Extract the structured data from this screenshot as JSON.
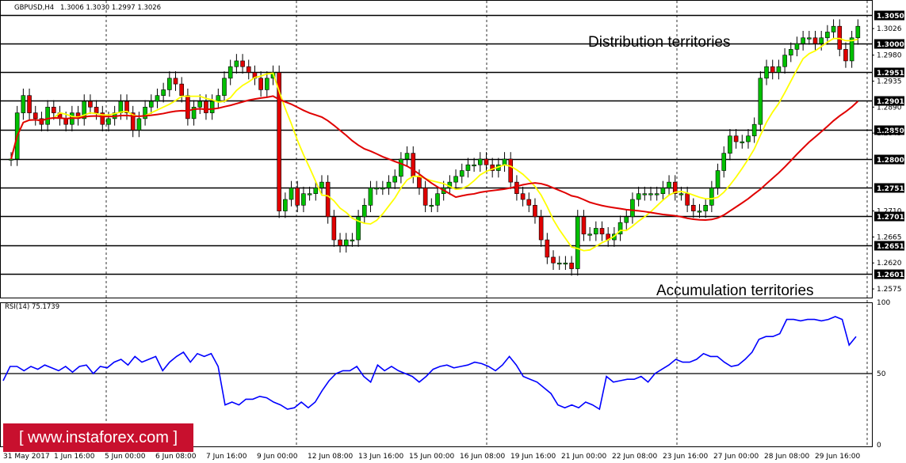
{
  "header": {
    "symbol_label": "GBPUSD,H4",
    "ohlc_text": "1.3006 1.3030 1.2997 1.3026"
  },
  "annotations": {
    "distribution": "Distribution territories",
    "accumulation": "Accumulation territories"
  },
  "brand": {
    "text": "[ www.instaforex.com ]",
    "color": "#c8102e"
  },
  "colors": {
    "bull_candle": "#00c000",
    "bear_candle": "#e00000",
    "ma_fast": "#ffff00",
    "ma_slow": "#e00000",
    "rsi_line": "#0000ff"
  },
  "chart_data": [
    {
      "type": "candlestick",
      "panel": "price",
      "ylim": [
        1.256,
        1.307
      ],
      "y_ticks": [
        "1.3050",
        "1.3026",
        "1.3000",
        "1.2980",
        "1.2951",
        "1.2935",
        "1.2901",
        "1.2890",
        "1.2850",
        "1.2845",
        "1.2800",
        "1.2751",
        "1.2710",
        "1.2701",
        "1.2665",
        "1.2651",
        "1.2620",
        "1.2601",
        "1.2575"
      ],
      "levels": [
        1.305,
        1.3,
        1.2951,
        1.2901,
        1.285,
        1.28,
        1.2751,
        1.2701,
        1.2651,
        1.2601
      ],
      "current_price": 1.3026,
      "x_labels": [
        "31 May 2017",
        "1 Jun 16:00",
        "5 Jun 00:00",
        "6 Jun 08:00",
        "7 Jun 16:00",
        "9 Jun 00:00",
        "12 Jun 08:00",
        "13 Jun 16:00",
        "15 Jun 00:00",
        "16 Jun 08:00",
        "19 Jun 16:00",
        "21 Jun 00:00",
        "22 Jun 08:00",
        "23 Jun 16:00",
        "27 Jun 00:00",
        "28 Jun 08:00",
        "29 Jun 16:00"
      ],
      "grid": true,
      "close": [
        1.28,
        1.288,
        1.291,
        1.288,
        1.287,
        1.286,
        1.289,
        1.288,
        1.287,
        1.286,
        1.288,
        1.287,
        1.29,
        1.289,
        1.288,
        1.286,
        1.287,
        1.288,
        1.29,
        1.288,
        1.285,
        1.287,
        1.289,
        1.29,
        1.291,
        1.292,
        1.294,
        1.293,
        1.291,
        1.287,
        1.289,
        1.29,
        1.288,
        1.29,
        1.291,
        1.294,
        1.296,
        1.297,
        1.296,
        1.295,
        1.294,
        1.292,
        1.294,
        1.295,
        1.271,
        1.273,
        1.275,
        1.272,
        1.274,
        1.274,
        1.275,
        1.276,
        1.27,
        1.266,
        1.265,
        1.266,
        1.266,
        1.27,
        1.272,
        1.275,
        1.275,
        1.275,
        1.276,
        1.277,
        1.28,
        1.281,
        1.277,
        1.275,
        1.272,
        1.272,
        1.274,
        1.275,
        1.276,
        1.277,
        1.278,
        1.279,
        1.279,
        1.28,
        1.279,
        1.278,
        1.279,
        1.28,
        1.276,
        1.274,
        1.273,
        1.272,
        1.27,
        1.266,
        1.263,
        1.262,
        1.262,
        1.262,
        1.261,
        1.27,
        1.267,
        1.267,
        1.268,
        1.267,
        1.266,
        1.267,
        1.269,
        1.27,
        1.273,
        1.274,
        1.274,
        1.274,
        1.274,
        1.275,
        1.276,
        1.274,
        1.274,
        1.272,
        1.271,
        1.271,
        1.272,
        1.275,
        1.278,
        1.281,
        1.284,
        1.283,
        1.283,
        1.284,
        1.286,
        1.294,
        1.296,
        1.295,
        1.296,
        1.298,
        1.299,
        1.3,
        1.301,
        1.301,
        1.3,
        1.301,
        1.302,
        1.303,
        1.299,
        1.297,
        1.301,
        1.303
      ]
    },
    {
      "type": "line",
      "panel": "indicator",
      "title": "RSI(14) 75.1739",
      "ylim": [
        0,
        100
      ],
      "y_ticks": [
        "100",
        "50",
        "0"
      ],
      "reference_level": 50,
      "series": [
        {
          "values": [
            45,
            55,
            55,
            52,
            55,
            53,
            56,
            54,
            52,
            55,
            51,
            55,
            56,
            50,
            55,
            54,
            58,
            60,
            56,
            62,
            58,
            60,
            62,
            52,
            58,
            62,
            65,
            58,
            64,
            62,
            64,
            55,
            28,
            30,
            28,
            32,
            32,
            34,
            33,
            30,
            28,
            25,
            26,
            30,
            26,
            30,
            38,
            45,
            50,
            52,
            52,
            55,
            48,
            44,
            56,
            52,
            55,
            52,
            50,
            48,
            44,
            48,
            53,
            55,
            56,
            54,
            55,
            56,
            58,
            57,
            55,
            52,
            56,
            62,
            56,
            48,
            46,
            44,
            40,
            36,
            28,
            26,
            28,
            26,
            30,
            28,
            25,
            48,
            44,
            45,
            46,
            46,
            48,
            44,
            50,
            53,
            56,
            60,
            58,
            58,
            60,
            64,
            62,
            62,
            58,
            55,
            56,
            60,
            65,
            74,
            76,
            76,
            78,
            88,
            88,
            87,
            88,
            88,
            87,
            88,
            90,
            88,
            70,
            76
          ]
        }
      ]
    }
  ]
}
